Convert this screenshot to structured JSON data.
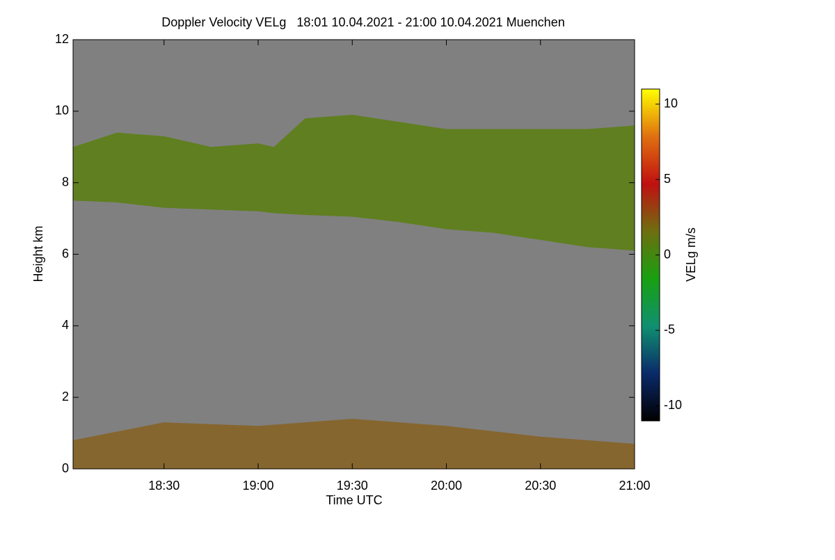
{
  "chart_data": {
    "type": "time-height",
    "title": "Doppler Velocity VELg   18:01 10.04.2021 - 21:00 10.04.2021 Muenchen",
    "x_label": "Time UTC",
    "y_label": "Height km",
    "background": "#808080",
    "xlim": [
      18.0167,
      21.0
    ],
    "xticks": [
      {
        "value": 18.5,
        "label": "18:30"
      },
      {
        "value": 19.0,
        "label": "19:00"
      },
      {
        "value": 19.5,
        "label": "19:30"
      },
      {
        "value": 20.0,
        "label": "20:00"
      },
      {
        "value": 20.5,
        "label": "20:30"
      },
      {
        "value": 21.0,
        "label": "21:00"
      }
    ],
    "ylim": [
      0,
      12
    ],
    "yticks": [
      0,
      2,
      4,
      6,
      8,
      10,
      12
    ],
    "layers": [
      {
        "color": "#5e7e1a",
        "x": [
          18.0167,
          18.25,
          18.5,
          18.75,
          19.0,
          19.0833,
          19.25,
          19.5,
          19.75,
          20.0,
          20.25,
          20.5,
          20.75,
          21.0
        ],
        "top": [
          9.0,
          9.4,
          9.3,
          9.0,
          9.1,
          9.0,
          9.8,
          9.9,
          9.7,
          9.5,
          9.5,
          9.5,
          9.5,
          9.6
        ],
        "base": [
          7.5,
          7.45,
          7.3,
          7.25,
          7.2,
          7.15,
          7.1,
          7.05,
          6.9,
          6.7,
          6.6,
          6.4,
          6.2,
          6.1
        ]
      },
      {
        "color": "#86642a",
        "x": [
          18.0167,
          18.5,
          19.0,
          19.5,
          20.0,
          20.5,
          21.0
        ],
        "top": [
          0.8,
          1.3,
          1.2,
          1.4,
          1.2,
          0.9,
          0.7
        ],
        "base": [
          0,
          0,
          0,
          0,
          0,
          0,
          0
        ]
      }
    ],
    "colorbar": {
      "label": "VELg m/s",
      "lim": [
        -11,
        11
      ],
      "ticks": [
        -10,
        -5,
        0,
        5,
        10
      ],
      "colormap": [
        "#000000",
        "#0a2a6a",
        "#109070",
        "#18a010",
        "#6e6e10",
        "#c01010",
        "#e07010",
        "#ffff00"
      ]
    }
  }
}
